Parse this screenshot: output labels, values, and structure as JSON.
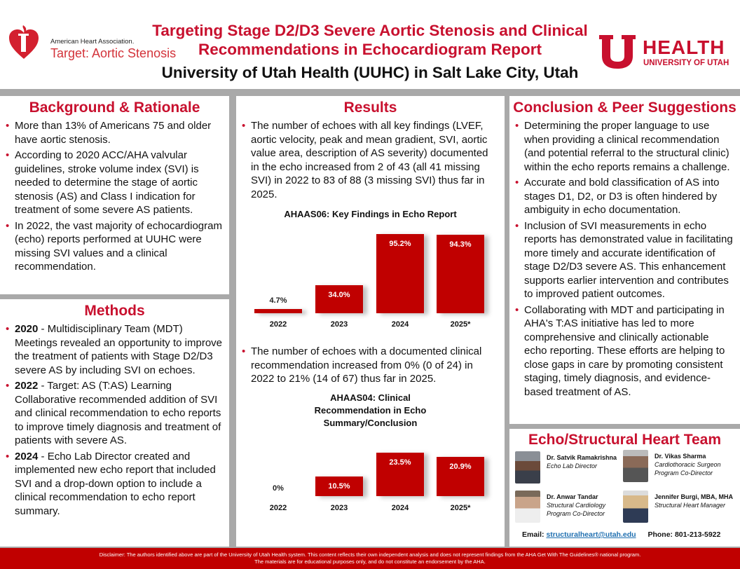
{
  "header": {
    "aha_org": "American Heart Association.",
    "aha_program": "Target: Aortic Stenosis",
    "title": "Targeting Stage D2/D3 Severe Aortic Stenosis and Clinical Recommendations in Echocardiogram Report",
    "subtitle": "University of Utah Health (UUHC) in Salt Lake City, Utah",
    "uu_health": "HEALTH",
    "uu_univ": "UNIVERSITY OF UTAH"
  },
  "background": {
    "title": "Background & Rationale",
    "items": [
      "More than 13% of Americans 75 and older have aortic stenosis.",
      "According to 2020 ACC/AHA valvular guidelines, stroke volume index (SVI) is needed to determine the stage of aortic stenosis (AS) and Class I indication for treatment of some severe AS patients.",
      "In 2022, the vast majority of echocardiogram (echo) reports performed at UUHC were missing SVI values and a clinical recommendation."
    ]
  },
  "methods": {
    "title": "Methods",
    "items": [
      {
        "year": "2020",
        "text": " - Multidisciplinary Team (MDT) Meetings revealed an opportunity to improve the treatment of patients with Stage D2/D3 severe AS by including SVI on echoes."
      },
      {
        "year": "2022",
        "text": " - Target: AS (T:AS) Learning Collaborative recommended addition of SVI and clinical recommendation to echo reports to improve timely diagnosis and treatment of patients with severe AS."
      },
      {
        "year": "2024",
        "text": " - Echo Lab Director created and implemented new echo report that included SVI and a drop-down option to include a clinical recommendation to echo report summary."
      }
    ]
  },
  "results": {
    "title": "Results",
    "item1": "The number of echoes with all key findings (LVEF, aortic velocity, peak and mean gradient, SVI, aortic value area, description of AS severity) documented in the echo increased from 2 of 43 (all 41 missing SVI) in 2022 to 83 of 88 (3 missing SVI) thus far in 2025.",
    "item2": "The number of echoes with a documented clinical recommendation increased from 0% (0 of 24) in 2022 to 21% (14 of 67) thus far in 2025."
  },
  "chart_data": [
    {
      "type": "bar",
      "title": "AHAAS06: Key Findings in Echo Report",
      "categories": [
        "2022",
        "2023",
        "2024",
        "2025*"
      ],
      "values": [
        4.7,
        34.0,
        95.2,
        94.3
      ],
      "labels": [
        "4.7%",
        "34.0%",
        "95.2%",
        "94.3%"
      ],
      "ylim": [
        0,
        100
      ],
      "color": "#c00000",
      "grid": false
    },
    {
      "type": "bar",
      "title": "AHAAS04: Clinical Recommendation in Echo Summary/Conclusion",
      "categories": [
        "2022",
        "2023",
        "2024",
        "2025*"
      ],
      "values": [
        0,
        10.5,
        23.5,
        20.9
      ],
      "labels": [
        "0%",
        "10.5%",
        "23.5%",
        "20.9%"
      ],
      "ylim": [
        0,
        25
      ],
      "color": "#c00000",
      "grid": false
    }
  ],
  "conclusion": {
    "title": "Conclusion & Peer Suggestions",
    "items": [
      "Determining the proper language to use when providing a clinical recommendation (and potential referral to the structural clinic) within the echo reports remains a challenge.",
      "Accurate and bold classification of AS into stages D1, D2, or D3 is often hindered by ambiguity in echo documentation.",
      "Inclusion of SVI measurements in echo reports has demonstrated value in facilitating more timely and accurate identification of stage D2/D3 severe AS. This enhancement supports earlier intervention and contributes to improved patient outcomes.",
      "Collaborating with MDT and participating in AHA's T:AS initiative has led to more comprehensive and clinically actionable echo reporting. These efforts are helping to close gaps in care by promoting consistent staging, timely diagnosis, and evidence-based treatment of AS."
    ]
  },
  "team": {
    "title": "Echo/Structural Heart Team",
    "members": [
      {
        "name": "Dr. Satvik Ramakrishna",
        "role1": "Echo Lab Director",
        "role2": ""
      },
      {
        "name": "Dr. Vikas Sharma",
        "role1": "Cardiothoracic Surgeon",
        "role2": "Program Co-Director"
      },
      {
        "name": "Dr. Anwar Tandar",
        "role1": "Structural Cardiology",
        "role2": "Program Co-Director"
      },
      {
        "name": "Jennifer Burgi, MBA, MHA",
        "role1": "Structural Heart Manager",
        "role2": ""
      }
    ],
    "email_label": "Email: ",
    "email": "structuralheart@utah.edu",
    "phone": "Phone: 801-213-5922"
  },
  "footer": {
    "line1": "Disclaimer: The authors identified above are part of the University of Utah Health system. This content reflects their own independent analysis and does not represent findings from the AHA Get With The Guidelines® national program.",
    "line2": "The materials are for educational purposes only, and do not constitute an endorsement by the AHA."
  }
}
